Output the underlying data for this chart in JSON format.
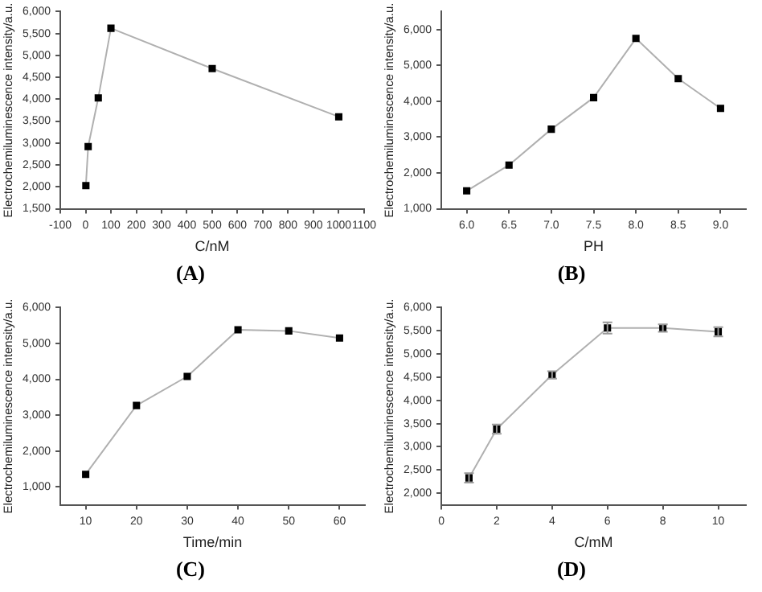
{
  "chart_data": [
    {
      "type": "line",
      "xlabel": "C/nM",
      "ylabel": "Electrochemiluminescence intensity/a.u.",
      "annotations": [
        "(A)"
      ],
      "marker": "square",
      "grid": false,
      "legend": false,
      "x": [
        1,
        10,
        50,
        100,
        500,
        1000
      ],
      "series": [
        {
          "color": "#000000",
          "values": [
            2030,
            2920,
            4030,
            5620,
            4700,
            3600
          ]
        }
      ],
      "xlim": [
        -100,
        1100
      ],
      "xticks": [
        -100,
        0,
        100,
        200,
        300,
        400,
        500,
        600,
        700,
        800,
        900,
        1000,
        1100
      ],
      "ylim": [
        1500,
        6000
      ],
      "yticks": [
        {
          "value": 1500,
          "label": "1,500"
        },
        {
          "value": 2000,
          "label": "2,000"
        },
        {
          "value": 2500,
          "label": "2,500"
        },
        {
          "value": 3000,
          "label": "3,000"
        },
        {
          "value": 3500,
          "label": "3,500"
        },
        {
          "value": 4000,
          "label": "4,000"
        },
        {
          "value": 4500,
          "label": "4,500"
        },
        {
          "value": 5000,
          "label": "5,000"
        },
        {
          "value": 5500,
          "label": "5,500"
        },
        {
          "value": 6000,
          "label": "6,000"
        }
      ]
    },
    {
      "type": "line",
      "xlabel": "PH",
      "ylabel": "Electrochemiluminescence intensity/a.u.",
      "annotations": [
        "(B)"
      ],
      "marker": "square",
      "grid": false,
      "legend": false,
      "x": [
        6,
        6.5,
        7,
        7.5,
        8,
        8.5,
        9
      ],
      "series": [
        {
          "color": "#000000",
          "values": [
            1500,
            2220,
            3220,
            4100,
            5750,
            4630,
            3800
          ]
        }
      ],
      "xlim": [
        5.7,
        9.3
      ],
      "xticks": [
        {
          "value": 6,
          "label": "6.0"
        },
        6.5,
        {
          "value": 7,
          "label": "7.0"
        },
        7.5,
        {
          "value": 8,
          "label": "8.0"
        },
        8.5,
        {
          "value": 9,
          "label": "9.0"
        }
      ],
      "ylim": [
        1000,
        6500
      ],
      "yticks": [
        {
          "value": 1000,
          "label": "1,000"
        },
        {
          "value": 2000,
          "label": "2,000"
        },
        {
          "value": 3000,
          "label": "3,000"
        },
        {
          "value": 4000,
          "label": "4,000"
        },
        {
          "value": 5000,
          "label": "5,000"
        },
        {
          "value": 6000,
          "label": "6,000"
        }
      ]
    },
    {
      "type": "line",
      "xlabel": "Time/min",
      "ylabel": "Electrochemiluminescence intensity/a.u.",
      "annotations": [
        "(C)"
      ],
      "marker": "square",
      "grid": false,
      "legend": false,
      "x": [
        10,
        20,
        30,
        40,
        50,
        60
      ],
      "series": [
        {
          "color": "#000000",
          "values": [
            1350,
            3270,
            4080,
            5380,
            5350,
            5150
          ]
        }
      ],
      "xlim": [
        5,
        65
      ],
      "xticks": [
        10,
        20,
        30,
        40,
        50,
        60
      ],
      "ylim": [
        500,
        6000
      ],
      "yticks": [
        {
          "value": 1000,
          "label": "1,000"
        },
        {
          "value": 2000,
          "label": "2,000"
        },
        {
          "value": 3000,
          "label": "3,000"
        },
        {
          "value": 4000,
          "label": "4,000"
        },
        {
          "value": 5000,
          "label": "5,000"
        },
        {
          "value": 6000,
          "label": "6,000"
        }
      ]
    },
    {
      "type": "line",
      "xlabel": "C/mM",
      "ylabel": "Electrochemiluminescence intensity/a.u.",
      "annotations": [
        "(D)"
      ],
      "marker": "square",
      "grid": false,
      "legend": false,
      "x": [
        1,
        2,
        4,
        6,
        8,
        10
      ],
      "series": [
        {
          "color": "#000000",
          "values": [
            2330,
            3380,
            4550,
            5560,
            5560,
            5480
          ],
          "errors": [
            100,
            100,
            80,
            120,
            80,
            100
          ]
        }
      ],
      "xlim": [
        0,
        11
      ],
      "xticks": [
        0,
        2,
        4,
        6,
        8,
        10
      ],
      "ylim": [
        1750,
        6000
      ],
      "yticks": [
        {
          "value": 2000,
          "label": "2,000"
        },
        {
          "value": 2500,
          "label": "2,500"
        },
        {
          "value": 3000,
          "label": "3,000"
        },
        {
          "value": 3500,
          "label": "3,500"
        },
        {
          "value": 4000,
          "label": "4,000"
        },
        {
          "value": 4500,
          "label": "4,500"
        },
        {
          "value": 5000,
          "label": "5,000"
        },
        {
          "value": 5500,
          "label": "5,500"
        },
        {
          "value": 6000,
          "label": "6,000"
        }
      ]
    }
  ]
}
